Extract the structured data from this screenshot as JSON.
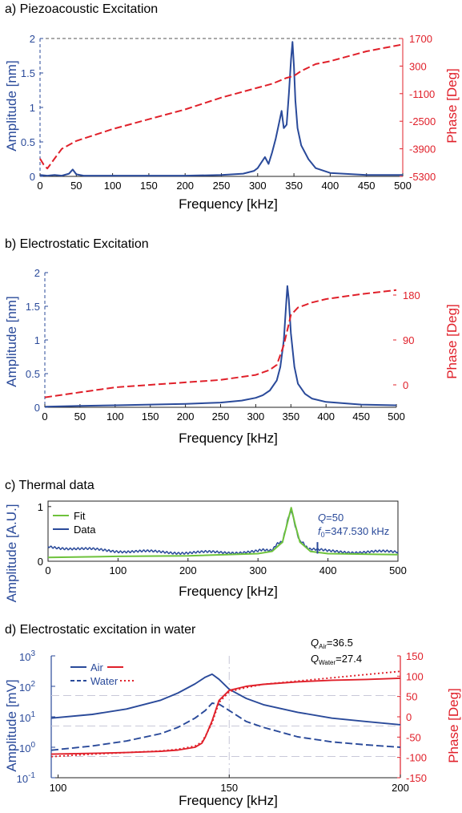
{
  "colors": {
    "amplitude": "#2a4a9a",
    "phase": "#e0202a",
    "fit": "#6ec23c",
    "axis": "#222222",
    "grid": "#c8c8d8"
  },
  "chart_data": [
    {
      "panel": "a",
      "type": "line",
      "title": "a) Piezoacoustic Excitation",
      "xlabel": "Frequency [kHz]",
      "ylabel": "Amplitude [nm]",
      "y2label": "Phase [Deg]",
      "xlim": [
        0,
        500
      ],
      "ylim": [
        0,
        2
      ],
      "y2lim": [
        -5300,
        1700
      ],
      "xticks": [
        0,
        50,
        100,
        150,
        200,
        250,
        300,
        350,
        400,
        450,
        500
      ],
      "yticks": [
        0,
        0.5,
        1,
        1.5,
        2
      ],
      "ytick_labels": [
        "0",
        "0.5",
        "1",
        "1.5",
        "2"
      ],
      "y2ticks": [
        -5300,
        -3900,
        -2500,
        -1100,
        300,
        1700
      ],
      "series": [
        {
          "axis": "left",
          "style": "solid",
          "x": [
            0,
            10,
            20,
            30,
            40,
            45,
            50,
            60,
            80,
            100,
            150,
            200,
            250,
            280,
            295,
            300,
            305,
            310,
            315,
            320,
            325,
            330,
            333,
            336,
            340,
            343,
            346,
            348,
            350,
            352,
            355,
            360,
            365,
            370,
            380,
            400,
            450,
            500
          ],
          "y": [
            0.02,
            0.01,
            0.02,
            0.01,
            0.04,
            0.1,
            0.03,
            0.01,
            0.01,
            0.01,
            0.01,
            0.01,
            0.02,
            0.04,
            0.08,
            0.12,
            0.2,
            0.28,
            0.18,
            0.35,
            0.55,
            0.8,
            0.95,
            0.7,
            0.75,
            1.2,
            1.7,
            1.95,
            1.6,
            1.1,
            0.7,
            0.45,
            0.35,
            0.25,
            0.12,
            0.05,
            0.02,
            0.02
          ]
        },
        {
          "axis": "right",
          "style": "dashed",
          "x": [
            0,
            5,
            10,
            20,
            30,
            50,
            100,
            150,
            200,
            250,
            300,
            320,
            340,
            350,
            360,
            380,
            400,
            450,
            500
          ],
          "y": [
            -4400,
            -4700,
            -4900,
            -4400,
            -3900,
            -3500,
            -2900,
            -2400,
            -1900,
            -1300,
            -800,
            -600,
            -300,
            -200,
            50,
            400,
            550,
            1050,
            1400
          ]
        }
      ]
    },
    {
      "panel": "b",
      "type": "line",
      "title": "b) Electrostatic Excitation",
      "xlabel": "Frequency [kHz]",
      "ylabel": "Amplitude [nm]",
      "y2label": "Phase [Deg]",
      "xlim": [
        0,
        500
      ],
      "ylim": [
        0,
        2
      ],
      "y2lim": [
        -45,
        225
      ],
      "xticks": [
        0,
        50,
        100,
        150,
        200,
        250,
        300,
        350,
        400,
        450,
        500
      ],
      "yticks": [
        0,
        0.5,
        1,
        1.5,
        2
      ],
      "ytick_labels": [
        "0",
        "0.5",
        "1",
        "1.5",
        "2"
      ],
      "y2ticks": [
        0,
        90,
        180
      ],
      "series": [
        {
          "axis": "left",
          "style": "solid",
          "x": [
            0,
            50,
            100,
            150,
            200,
            250,
            280,
            300,
            310,
            320,
            330,
            335,
            340,
            343,
            345,
            347,
            350,
            355,
            360,
            370,
            380,
            400,
            450,
            500
          ],
          "y": [
            0.01,
            0.02,
            0.03,
            0.04,
            0.05,
            0.07,
            0.1,
            0.14,
            0.18,
            0.25,
            0.4,
            0.6,
            1.0,
            1.5,
            1.8,
            1.6,
            1.1,
            0.6,
            0.35,
            0.2,
            0.13,
            0.08,
            0.04,
            0.03
          ]
        },
        {
          "axis": "right",
          "style": "dashed",
          "x": [
            0,
            50,
            100,
            150,
            200,
            250,
            300,
            320,
            330,
            340,
            345,
            350,
            360,
            380,
            400,
            450,
            500
          ],
          "y": [
            -25,
            -15,
            -5,
            0,
            5,
            10,
            20,
            30,
            40,
            80,
            110,
            140,
            155,
            165,
            172,
            182,
            190
          ]
        }
      ]
    },
    {
      "panel": "c",
      "type": "line",
      "title": "c) Thermal data",
      "xlabel": "Frequency [kHz]",
      "ylabel": "Amplitude [A.U.]",
      "xlim": [
        0,
        500
      ],
      "ylim": [
        0,
        1.1
      ],
      "xticks": [
        0,
        100,
        200,
        300,
        400,
        500
      ],
      "yticks": [
        0,
        1
      ],
      "ytick_labels": [
        "0",
        "1"
      ],
      "legend": {
        "position": "top-left",
        "entries": [
          "Fit",
          "Data"
        ]
      },
      "annotations": {
        "q_symbol": "Q",
        "q_value": "=50",
        "f0_symbol": "f",
        "f0_sub": "0",
        "f0_value": "=347.530 kHz"
      },
      "series": [
        {
          "name": "Fit",
          "style": "solid",
          "x": [
            0,
            100,
            200,
            300,
            320,
            335,
            342,
            347.5,
            353,
            360,
            375,
            400,
            500
          ],
          "y": [
            0.07,
            0.09,
            0.1,
            0.14,
            0.18,
            0.35,
            0.7,
            0.98,
            0.68,
            0.35,
            0.18,
            0.14,
            0.12
          ]
        },
        {
          "name": "Data",
          "style": "solid",
          "x": [
            0,
            50,
            100,
            150,
            200,
            250,
            300,
            320,
            335,
            342,
            347,
            352,
            360,
            375,
            400,
            450,
            500
          ],
          "y": [
            0.27,
            0.22,
            0.19,
            0.17,
            0.16,
            0.16,
            0.18,
            0.22,
            0.38,
            0.72,
            0.97,
            0.7,
            0.36,
            0.22,
            0.18,
            0.17,
            0.17
          ]
        }
      ]
    },
    {
      "panel": "d",
      "type": "line",
      "title": "d) Electrostatic excitation in water",
      "xlabel": "Frequency [kHz]",
      "ylabel": "Amplitude [mV]",
      "y2label": "Phase [Deg]",
      "xlim": [
        98,
        200
      ],
      "ylim": [
        0.1,
        1000
      ],
      "yscale": "log",
      "y2lim": [
        -150,
        150
      ],
      "xticks": [
        100,
        150,
        200
      ],
      "y2ticks": [
        -150,
        -100,
        -50,
        0,
        50,
        100,
        150
      ],
      "ytick_mantissa": "10",
      "ytick_exponents": [
        "-1",
        "0",
        "1",
        "2",
        "3"
      ],
      "y_exponents": [
        -1,
        0,
        1,
        2,
        3
      ],
      "legend": {
        "position": "top-left",
        "rows": [
          "Air",
          "Water"
        ]
      },
      "annotations": {
        "q_symbol": "Q",
        "q_air_sub": "Air",
        "q_air_value": "=36.5",
        "q_water_sub": "Water",
        "q_water_value": "=27.4"
      },
      "series": [
        {
          "name": "Air",
          "axis": "left",
          "style": "solid",
          "color": "amplitude",
          "x": [
            98,
            110,
            120,
            130,
            135,
            140,
            143,
            145,
            147,
            150,
            155,
            160,
            170,
            180,
            190,
            200
          ],
          "y": [
            9,
            12,
            18,
            35,
            60,
            120,
            200,
            250,
            170,
            80,
            40,
            25,
            14,
            9,
            7,
            5.5
          ]
        },
        {
          "name": "Water",
          "axis": "left",
          "style": "dashed",
          "color": "amplitude",
          "x": [
            98,
            110,
            120,
            130,
            135,
            140,
            143,
            145,
            147,
            150,
            155,
            160,
            170,
            180,
            190,
            200
          ],
          "y": [
            0.8,
            1.1,
            1.6,
            2.8,
            4.5,
            9,
            16,
            28,
            26,
            16,
            7,
            4.5,
            2.2,
            1.5,
            1.2,
            1.0
          ]
        },
        {
          "name": "Air",
          "axis": "right",
          "style": "solid",
          "color": "phase",
          "x": [
            98,
            110,
            120,
            130,
            135,
            140,
            142,
            143,
            145,
            147,
            150,
            155,
            160,
            170,
            180,
            190,
            200
          ],
          "y": [
            -92,
            -90,
            -88,
            -85,
            -82,
            -75,
            -65,
            -50,
            -10,
            40,
            65,
            75,
            80,
            86,
            90,
            92,
            95
          ]
        },
        {
          "name": "Water",
          "axis": "right",
          "style": "dotted",
          "color": "phase",
          "x": [
            98,
            110,
            120,
            130,
            135,
            140,
            142,
            143,
            145,
            147,
            150,
            155,
            160,
            170,
            180,
            190,
            200
          ],
          "y": [
            -98,
            -92,
            -88,
            -84,
            -80,
            -72,
            -62,
            -48,
            -15,
            35,
            62,
            72,
            80,
            88,
            96,
            104,
            112
          ]
        }
      ]
    }
  ]
}
